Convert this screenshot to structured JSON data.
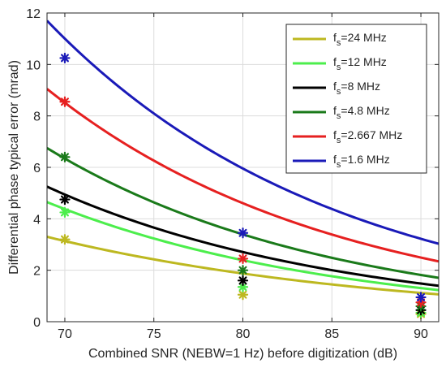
{
  "chart_data": {
    "type": "line",
    "xlabel": "Combined SNR (NEBW=1 Hz) before digitization (dB)",
    "ylabel": "Differential phase typical error (mrad)",
    "xlim": [
      69,
      91
    ],
    "ylim": [
      0,
      12
    ],
    "xticks": [
      70,
      75,
      80,
      85,
      90
    ],
    "yticks": [
      0,
      2,
      4,
      6,
      8,
      10,
      12
    ],
    "grid": true,
    "legend_position": "top-right",
    "series": [
      {
        "name": "fs=24 MHz",
        "name_base": "f",
        "name_sub": "s",
        "name_rest": "=24 MHz",
        "color": "#bdb820",
        "curve_at_69": 3.3,
        "decay_per_db": 0.0515,
        "markers": [
          {
            "x": 70,
            "y": 3.2
          },
          {
            "x": 80,
            "y": 1.05
          },
          {
            "x": 90,
            "y": 0.3
          }
        ]
      },
      {
        "name": "fs=12 MHz",
        "name_base": "f",
        "name_sub": "s",
        "name_rest": "=12 MHz",
        "color": "#4cee4c",
        "curve_at_69": 4.65,
        "decay_per_db": 0.0605,
        "markers": [
          {
            "x": 70,
            "y": 4.25
          },
          {
            "x": 80,
            "y": 1.35
          },
          {
            "x": 90,
            "y": 0.35
          }
        ]
      },
      {
        "name": "fs=8 MHz",
        "name_base": "f",
        "name_sub": "s",
        "name_rest": "=8 MHz",
        "color": "#000000",
        "curve_at_69": 5.25,
        "decay_per_db": 0.0602,
        "markers": [
          {
            "x": 70,
            "y": 4.75
          },
          {
            "x": 80,
            "y": 1.6
          },
          {
            "x": 90,
            "y": 0.45
          }
        ]
      },
      {
        "name": "fs=4.8 MHz",
        "name_base": "f",
        "name_sub": "s",
        "name_rest": "=4.8 MHz",
        "color": "#1a7a1a",
        "curve_at_69": 6.75,
        "decay_per_db": 0.0625,
        "markers": [
          {
            "x": 70,
            "y": 6.4
          },
          {
            "x": 80,
            "y": 2.0
          },
          {
            "x": 90,
            "y": 0.6
          }
        ]
      },
      {
        "name": "fs=2.667 MHz",
        "name_base": "f",
        "name_sub": "s",
        "name_rest": "=2.667 MHz",
        "color": "#e62020",
        "curve_at_69": 9.05,
        "decay_per_db": 0.0614,
        "markers": [
          {
            "x": 70,
            "y": 8.55
          },
          {
            "x": 80,
            "y": 2.45
          },
          {
            "x": 90,
            "y": 0.75
          }
        ]
      },
      {
        "name": "fs=1.6 MHz",
        "name_base": "f",
        "name_sub": "s",
        "name_rest": "=1.6 MHz",
        "color": "#1a1ab8",
        "curve_at_69": 11.7,
        "decay_per_db": 0.0614,
        "markers": [
          {
            "x": 70,
            "y": 10.25
          },
          {
            "x": 80,
            "y": 3.45
          },
          {
            "x": 90,
            "y": 0.95
          }
        ]
      }
    ]
  }
}
